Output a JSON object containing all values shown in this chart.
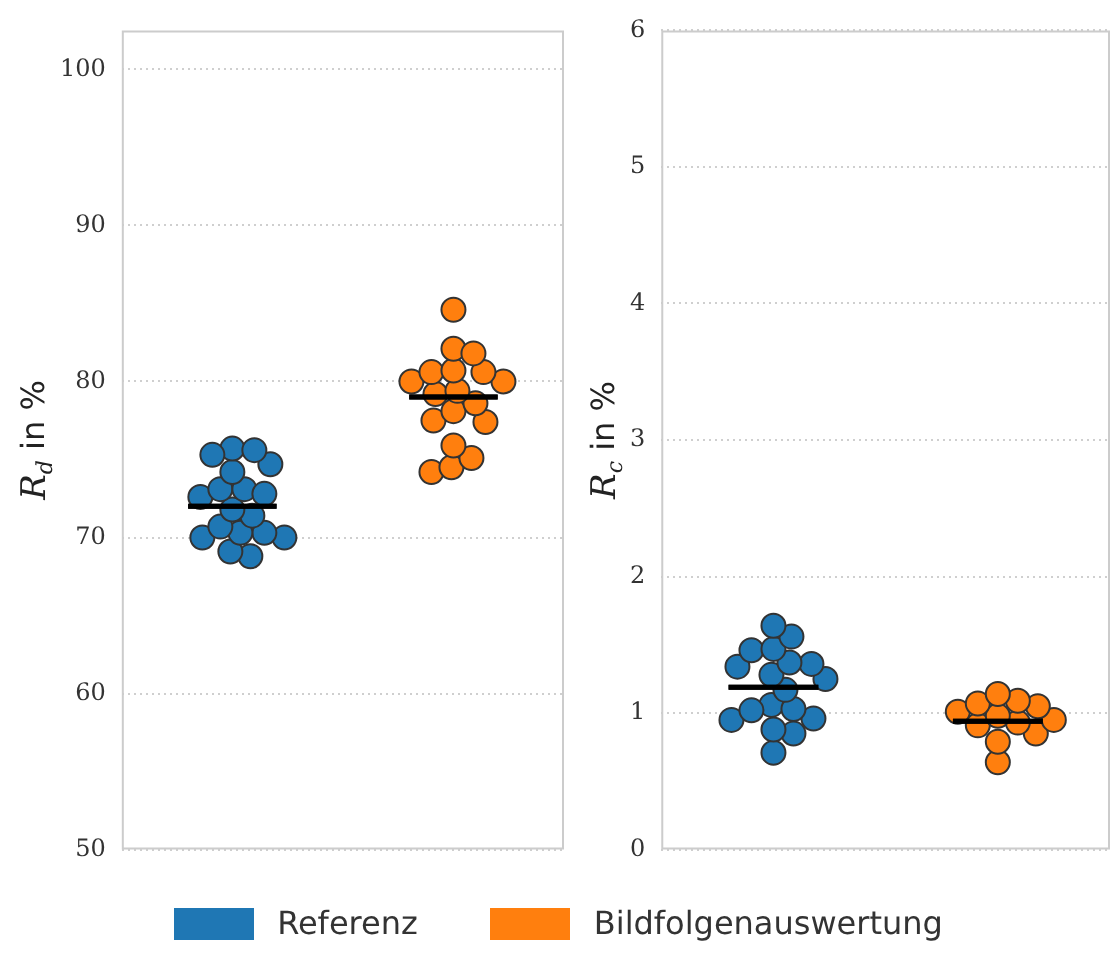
{
  "chart_data": [
    {
      "type": "scatter",
      "ylabel": "R$_{d}$ in %",
      "categories": [
        null,
        null
      ],
      "ylim": [
        50,
        102.5
      ],
      "yticks": [
        50,
        60,
        70,
        80,
        90,
        100
      ],
      "grid": "y",
      "tick_labels": "y",
      "legend": "bottom",
      "marker": "circle",
      "series": [
        {
          "name": "Referenz",
          "color": "#1f77b4",
          "values": [
            75.6,
            null
          ]
        },
        {
          "name": "Bildfolgenauswertung",
          "color": "#ff7f0e",
          "values": [
            null,
            84.6
          ]
        },
        {
          "color": "#1f77b4",
          "values": [
            75.3,
            null
          ]
        },
        {
          "color": "#1f77b4",
          "values": [
            75.7,
            null
          ]
        },
        {
          "color": "#1f77b4",
          "values": [
            74.7,
            null
          ]
        },
        {
          "color": "#1f77b4",
          "values": [
            74.2,
            null
          ]
        },
        {
          "color": "#1f77b4",
          "values": [
            72.8,
            null
          ]
        },
        {
          "color": "#1f77b4",
          "values": [
            73.1,
            null
          ]
        },
        {
          "color": "#1f77b4",
          "values": [
            73.1,
            null
          ]
        },
        {
          "color": "#1f77b4",
          "values": [
            72.6,
            null
          ]
        },
        {
          "color": "#1f77b4",
          "values": [
            71.8,
            null
          ]
        },
        {
          "color": "#1f77b4",
          "values": [
            71.4,
            null
          ]
        },
        {
          "color": "#1f77b4",
          "values": [
            70.7,
            null
          ]
        },
        {
          "color": "#1f77b4",
          "values": [
            70.0,
            null
          ]
        },
        {
          "color": "#1f77b4",
          "values": [
            70.3,
            null
          ]
        },
        {
          "color": "#1f77b4",
          "values": [
            70.3,
            null
          ]
        },
        {
          "color": "#1f77b4",
          "values": [
            70.0,
            null
          ]
        },
        {
          "color": "#1f77b4",
          "values": [
            69.1,
            null
          ]
        },
        {
          "color": "#1f77b4",
          "values": [
            68.8,
            null
          ]
        },
        {
          "color": "#ff7f0e",
          "values": [
            null,
            81.8
          ]
        },
        {
          "color": "#ff7f0e",
          "values": [
            null,
            82.1
          ]
        },
        {
          "color": "#ff7f0e",
          "values": [
            null,
            80.7
          ]
        },
        {
          "color": "#ff7f0e",
          "values": [
            null,
            80.6
          ]
        },
        {
          "color": "#ff7f0e",
          "values": [
            null,
            80.6
          ]
        },
        {
          "color": "#ff7f0e",
          "values": [
            null,
            80.0
          ]
        },
        {
          "color": "#ff7f0e",
          "values": [
            null,
            79.4
          ]
        },
        {
          "color": "#ff7f0e",
          "values": [
            null,
            80.0
          ]
        },
        {
          "color": "#ff7f0e",
          "values": [
            null,
            79.2
          ]
        },
        {
          "color": "#ff7f0e",
          "values": [
            null,
            78.6
          ]
        },
        {
          "color": "#ff7f0e",
          "values": [
            null,
            78.1
          ]
        },
        {
          "color": "#ff7f0e",
          "values": [
            null,
            77.4
          ]
        },
        {
          "color": "#ff7f0e",
          "values": [
            null,
            77.5
          ]
        },
        {
          "color": "#ff7f0e",
          "values": [
            null,
            75.9
          ]
        },
        {
          "color": "#ff7f0e",
          "values": [
            null,
            75.1
          ]
        },
        {
          "color": "#ff7f0e",
          "values": [
            null,
            74.5
          ]
        },
        {
          "color": "#ff7f0e",
          "values": [
            null,
            74.2
          ]
        },
        {
          "type": "box",
          "color": "#000000",
          "boxes": [
            {
              "low": 72.0,
              "q1": 72.0,
              "median": 72.0,
              "q3": 72.0,
              "high": 72.0
            },
            {
              "low": 79.0,
              "q1": 79.0,
              "median": 79.0,
              "q3": 79.0,
              "high": 79.0
            }
          ]
        }
      ]
    },
    {
      "type": "scatter",
      "ylabel": "R$_{c}$ in %",
      "categories": [
        null,
        null
      ],
      "ylim": [
        0,
        6
      ],
      "yticks": [
        0,
        1,
        2,
        3,
        4,
        5,
        6
      ],
      "grid": "y",
      "tick_labels": "y",
      "marker": "circle",
      "series": [
        {
          "color": "#1f77b4",
          "values": [
            1.64,
            null
          ]
        },
        {
          "color": "#1f77b4",
          "values": [
            1.56,
            null
          ]
        },
        {
          "color": "#1f77b4",
          "values": [
            1.47,
            null
          ]
        },
        {
          "color": "#1f77b4",
          "values": [
            1.46,
            null
          ]
        },
        {
          "color": "#1f77b4",
          "values": [
            1.34,
            null
          ]
        },
        {
          "color": "#1f77b4",
          "values": [
            1.37,
            null
          ]
        },
        {
          "color": "#1f77b4",
          "values": [
            1.36,
            null
          ]
        },
        {
          "color": "#1f77b4",
          "values": [
            1.28,
            null
          ]
        },
        {
          "color": "#1f77b4",
          "values": [
            1.25,
            null
          ]
        },
        {
          "color": "#1f77b4",
          "values": [
            1.17,
            null
          ]
        },
        {
          "color": "#1f77b4",
          "values": [
            1.02,
            null
          ]
        },
        {
          "color": "#1f77b4",
          "values": [
            1.03,
            null
          ]
        },
        {
          "color": "#1f77b4",
          "values": [
            1.06,
            null
          ]
        },
        {
          "color": "#1f77b4",
          "values": [
            0.96,
            null
          ]
        },
        {
          "color": "#1f77b4",
          "values": [
            0.95,
            null
          ]
        },
        {
          "color": "#1f77b4",
          "values": [
            0.88,
            null
          ]
        },
        {
          "color": "#1f77b4",
          "values": [
            0.85,
            null
          ]
        },
        {
          "color": "#1f77b4",
          "values": [
            0.71,
            null
          ]
        },
        {
          "color": "#ff7f0e",
          "values": [
            null,
            1.14
          ]
        },
        {
          "color": "#ff7f0e",
          "values": [
            null,
            1.07
          ]
        },
        {
          "color": "#ff7f0e",
          "values": [
            null,
            1.09
          ]
        },
        {
          "color": "#ff7f0e",
          "values": [
            null,
            1.05
          ]
        },
        {
          "color": "#ff7f0e",
          "values": [
            null,
            1.01
          ]
        },
        {
          "color": "#ff7f0e",
          "values": [
            null,
            0.98
          ]
        },
        {
          "color": "#ff7f0e",
          "values": [
            null,
            0.95
          ]
        },
        {
          "color": "#ff7f0e",
          "values": [
            null,
            0.93
          ]
        },
        {
          "color": "#ff7f0e",
          "values": [
            null,
            0.85
          ]
        },
        {
          "color": "#ff7f0e",
          "values": [
            null,
            0.79
          ]
        },
        {
          "color": "#ff7f0e",
          "values": [
            null,
            0.64
          ]
        },
        {
          "color": "#ff7f0e",
          "values": [
            null,
            0.91
          ]
        },
        {
          "type": "box",
          "color": "#000000",
          "boxes": [
            {
              "low": 1.19,
              "q1": 1.19,
              "median": 1.19,
              "q3": 1.19,
              "high": 1.19
            },
            {
              "low": 0.94,
              "q1": 0.94,
              "median": 0.94,
              "q3": 0.94,
              "high": 0.94
            }
          ]
        }
      ]
    }
  ]
}
